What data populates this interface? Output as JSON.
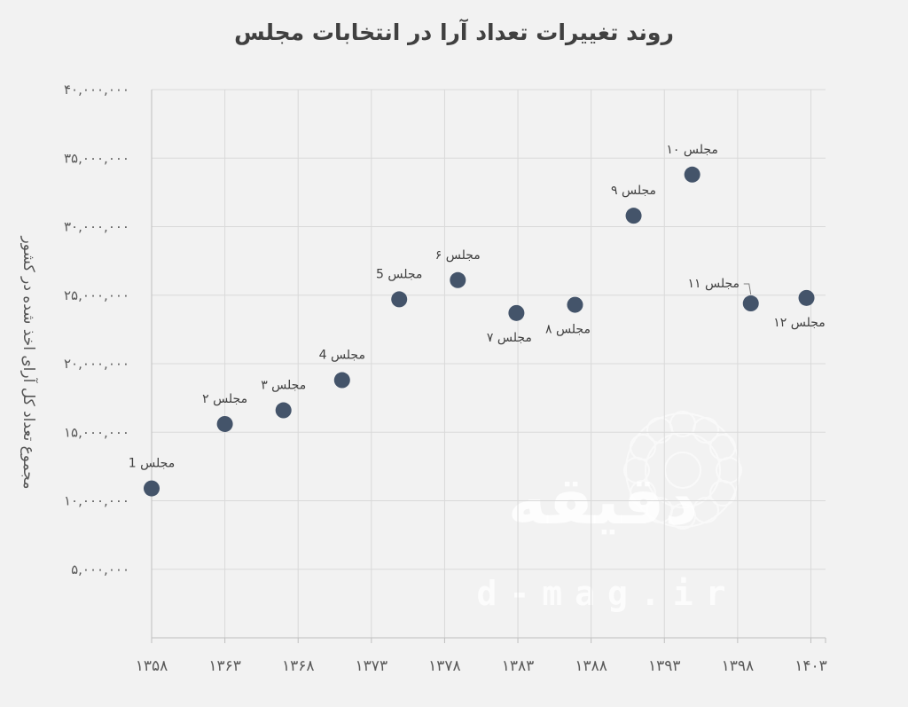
{
  "chart_data": {
    "type": "scatter",
    "title": "روند تغییرات تعداد آرا در انتخابات مجلس",
    "ylabel": "مجموع تعداد کل آرای اخذ شده در کشور",
    "xlabel": "",
    "xlim": [
      1358,
      1404
    ],
    "ylim": [
      0,
      40000000
    ],
    "grid": true,
    "x_ticks": [
      1358,
      1363,
      1368,
      1373,
      1378,
      1383,
      1388,
      1393,
      1398,
      1403
    ],
    "x_tick_labels": [
      "۱۳۵۸",
      "۱۳۶۳",
      "۱۳۶۸",
      "۱۳۷۳",
      "۱۳۷۸",
      "۱۳۸۳",
      "۱۳۸۸",
      "۱۳۹۳",
      "۱۳۹۸",
      "۱۴۰۳"
    ],
    "y_ticks": [
      5000000,
      10000000,
      15000000,
      20000000,
      25000000,
      30000000,
      35000000,
      40000000
    ],
    "y_tick_labels": [
      "۵,۰۰۰,۰۰۰",
      "۱۰,۰۰۰,۰۰۰",
      "۱۵,۰۰۰,۰۰۰",
      "۲۰,۰۰۰,۰۰۰",
      "۲۵,۰۰۰,۰۰۰",
      "۳۰,۰۰۰,۰۰۰",
      "۳۵,۰۰۰,۰۰۰",
      "۴۰,۰۰۰,۰۰۰"
    ],
    "marker_color": "#44546a",
    "points": [
      {
        "label": "مجلس 1",
        "x": 1358,
        "y": 10900000,
        "label_pos": "above"
      },
      {
        "label": "مجلس ۲",
        "x": 1363,
        "y": 15600000,
        "label_pos": "above"
      },
      {
        "label": "مجلس ۳",
        "x": 1367,
        "y": 16600000,
        "label_pos": "above"
      },
      {
        "label": "مجلس 4",
        "x": 1371,
        "y": 18800000,
        "label_pos": "above"
      },
      {
        "label": "مجلس 5",
        "x": 1374.9,
        "y": 24700000,
        "label_pos": "above"
      },
      {
        "label": "مجلس ۶",
        "x": 1378.9,
        "y": 26100000,
        "label_pos": "above"
      },
      {
        "label": "مجلس ۷",
        "x": 1382.9,
        "y": 23700000,
        "label_pos": "below"
      },
      {
        "label": "مجلس ۸",
        "x": 1386.9,
        "y": 24300000,
        "label_pos": "below"
      },
      {
        "label": "مجلس ۹",
        "x": 1390.9,
        "y": 30800000,
        "label_pos": "above"
      },
      {
        "label": "مجلس ۱۰",
        "x": 1394.9,
        "y": 33800000,
        "label_pos": "above"
      },
      {
        "label": "مجلس ۱۱",
        "x": 1398.9,
        "y": 24400000,
        "label_pos": "leader-left"
      },
      {
        "label": "مجلس ۱۲",
        "x": 1402.7,
        "y": 24800000,
        "label_pos": "below"
      }
    ]
  },
  "watermark": {
    "url": "d-mag.ir",
    "logo_text": "دقیقه"
  }
}
